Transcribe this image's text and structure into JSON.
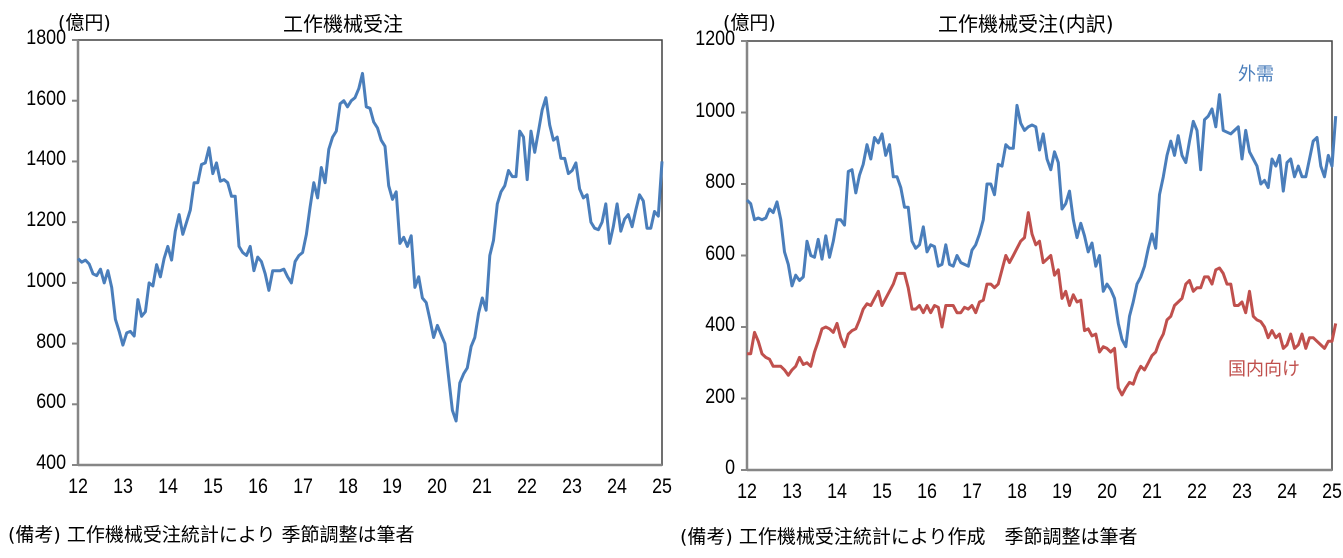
{
  "left": {
    "title": "工作機械受注",
    "unit": "(億円)",
    "note": "(備考) 工作機械受注統計により 季節調整は筆者"
  },
  "right": {
    "title": "工作機械受注(内訳)",
    "unit": "(億円)",
    "note": "(備考) 工作機械受注統計により作成　季節調整は筆者",
    "label_foreign": "外需",
    "label_domestic": "国内向け"
  },
  "colors": {
    "blue": "#4a7ebb",
    "red": "#c0504d",
    "axis": "#868686",
    "frame": "#404040"
  },
  "chart_data": [
    {
      "type": "line",
      "title": "工作機械受注",
      "xlabel": "",
      "ylabel": "(億円)",
      "ylim": [
        400,
        1800
      ],
      "yticks": [
        400,
        600,
        800,
        1000,
        1200,
        1400,
        1600,
        1800
      ],
      "xticks": [
        "12",
        "13",
        "14",
        "15",
        "16",
        "17",
        "18",
        "19",
        "20",
        "21",
        "22",
        "23",
        "24",
        "25"
      ],
      "xlim": [
        2012,
        2025
      ],
      "grid": false,
      "legend": "none",
      "x_start": 2012.0,
      "x_step_months": 1,
      "series": [
        {
          "name": "工作機械受注",
          "color": "#4a7ebb",
          "values": [
            1080,
            1068,
            1075,
            1062,
            1030,
            1024,
            1045,
            1000,
            1040,
            985,
            880,
            840,
            795,
            835,
            840,
            825,
            945,
            890,
            905,
            1000,
            990,
            1060,
            1020,
            1080,
            1120,
            1075,
            1170,
            1225,
            1160,
            1200,
            1240,
            1330,
            1330,
            1390,
            1395,
            1445,
            1360,
            1395,
            1335,
            1340,
            1330,
            1285,
            1285,
            1120,
            1100,
            1090,
            1120,
            1040,
            1085,
            1070,
            1030,
            975,
            1040,
            1040,
            1040,
            1045,
            1020,
            1000,
            1070,
            1090,
            1100,
            1160,
            1250,
            1330,
            1280,
            1380,
            1330,
            1440,
            1480,
            1500,
            1590,
            1600,
            1580,
            1600,
            1610,
            1640,
            1690,
            1580,
            1575,
            1530,
            1510,
            1470,
            1450,
            1320,
            1275,
            1300,
            1130,
            1150,
            1120,
            1155,
            985,
            1020,
            950,
            935,
            880,
            820,
            860,
            830,
            800,
            690,
            580,
            545,
            670,
            700,
            720,
            790,
            820,
            900,
            950,
            910,
            1090,
            1140,
            1260,
            1300,
            1320,
            1370,
            1350,
            1350,
            1500,
            1480,
            1340,
            1500,
            1430,
            1500,
            1570,
            1610,
            1520,
            1470,
            1480,
            1410,
            1410,
            1360,
            1370,
            1395,
            1310,
            1280,
            1290,
            1200,
            1180,
            1175,
            1200,
            1260,
            1130,
            1185,
            1260,
            1170,
            1210,
            1225,
            1185,
            1240,
            1290,
            1270,
            1180,
            1180,
            1235,
            1220,
            1400
          ]
        }
      ]
    },
    {
      "type": "line",
      "title": "工作機械受注(内訳)",
      "xlabel": "",
      "ylabel": "(億円)",
      "ylim": [
        0,
        1200
      ],
      "yticks": [
        0,
        200,
        400,
        600,
        800,
        1000,
        1200
      ],
      "xticks": [
        "12",
        "13",
        "14",
        "15",
        "16",
        "17",
        "18",
        "19",
        "20",
        "21",
        "22",
        "23",
        "24",
        "25"
      ],
      "xlim": [
        2012,
        2025
      ],
      "grid": false,
      "legend": "inline labels",
      "x_start": 2012.0,
      "x_step_months": 1,
      "series": [
        {
          "name": "外需",
          "color": "#4a7ebb",
          "values": [
            755,
            745,
            700,
            705,
            700,
            705,
            730,
            720,
            750,
            700,
            610,
            575,
            515,
            545,
            530,
            540,
            640,
            600,
            595,
            645,
            590,
            655,
            595,
            640,
            700,
            700,
            685,
            835,
            840,
            775,
            825,
            855,
            910,
            870,
            930,
            915,
            940,
            880,
            910,
            820,
            820,
            790,
            735,
            735,
            640,
            620,
            630,
            680,
            610,
            630,
            625,
            570,
            575,
            630,
            575,
            570,
            600,
            580,
            575,
            570,
            615,
            630,
            660,
            700,
            800,
            800,
            770,
            855,
            850,
            910,
            900,
            900,
            1020,
            970,
            950,
            960,
            965,
            960,
            895,
            940,
            870,
            840,
            890,
            860,
            730,
            745,
            780,
            700,
            650,
            690,
            655,
            610,
            635,
            570,
            600,
            500,
            520,
            505,
            480,
            410,
            365,
            345,
            430,
            470,
            520,
            540,
            570,
            620,
            660,
            620,
            770,
            820,
            880,
            920,
            880,
            935,
            880,
            860,
            920,
            975,
            950,
            840,
            980,
            990,
            1010,
            960,
            1050,
            950,
            945,
            940,
            950,
            960,
            870,
            950,
            890,
            870,
            850,
            800,
            810,
            790,
            870,
            850,
            880,
            780,
            860,
            870,
            820,
            850,
            820,
            820,
            870,
            920,
            930,
            850,
            820,
            880,
            850,
            990
          ]
        },
        {
          "name": "国内向け",
          "color": "#c0504d",
          "values": [
            325,
            325,
            385,
            360,
            325,
            315,
            310,
            290,
            290,
            290,
            280,
            265,
            280,
            290,
            315,
            295,
            300,
            290,
            330,
            360,
            395,
            400,
            395,
            385,
            410,
            370,
            345,
            380,
            390,
            395,
            420,
            450,
            465,
            460,
            480,
            500,
            460,
            480,
            500,
            520,
            550,
            550,
            550,
            510,
            450,
            450,
            460,
            440,
            460,
            440,
            460,
            455,
            400,
            460,
            460,
            460,
            440,
            440,
            455,
            450,
            460,
            440,
            470,
            475,
            520,
            520,
            510,
            520,
            560,
            600,
            580,
            600,
            620,
            640,
            650,
            720,
            660,
            630,
            640,
            580,
            590,
            600,
            545,
            560,
            480,
            500,
            460,
            490,
            470,
            475,
            390,
            395,
            375,
            380,
            330,
            345,
            340,
            330,
            340,
            230,
            210,
            230,
            245,
            240,
            270,
            290,
            280,
            300,
            320,
            330,
            360,
            380,
            420,
            430,
            460,
            470,
            480,
            520,
            530,
            500,
            510,
            510,
            540,
            540,
            520,
            560,
            565,
            550,
            520,
            520,
            460,
            460,
            470,
            440,
            500,
            430,
            420,
            415,
            400,
            370,
            390,
            370,
            380,
            340,
            350,
            380,
            340,
            350,
            380,
            340,
            370,
            370,
            360,
            350,
            340,
            360,
            360,
            410
          ]
        }
      ]
    }
  ]
}
